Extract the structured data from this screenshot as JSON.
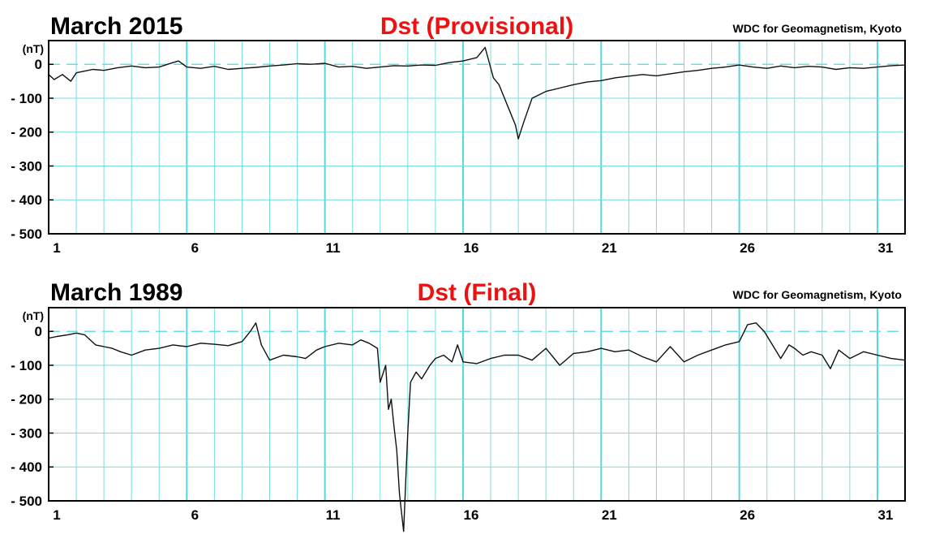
{
  "chart_data": [
    {
      "type": "line",
      "title": "March  2015",
      "subtitle": "Dst (Provisional)",
      "source": "WDC for Geomagnetism, Kyoto",
      "ylabel": "(nT)",
      "yticks": [
        0,
        -100,
        -200,
        -300,
        -400,
        -500
      ],
      "ytick_labels": [
        "0",
        "- 100",
        "- 200",
        "- 300",
        "- 400",
        "- 500"
      ],
      "ylim": [
        -500,
        70
      ],
      "xlim": [
        1,
        32
      ],
      "xticks": [
        1,
        6,
        11,
        16,
        21,
        26,
        31
      ],
      "xtick_labels": [
        "1",
        "6",
        "11",
        "16",
        "21",
        "26",
        "31"
      ],
      "grid": true,
      "series": [
        {
          "x": [
            1,
            1.2,
            1.5,
            1.8,
            2.0,
            2.3,
            2.6,
            3.0,
            3.5,
            4.0,
            4.5,
            5.0,
            5.5,
            5.7,
            6.0,
            6.5,
            7.0,
            7.5,
            8.0,
            8.5,
            9.0,
            9.5,
            10.0,
            10.5,
            11.0,
            11.5,
            12.0,
            12.5,
            13.0,
            13.5,
            14.0,
            14.5,
            15.0,
            15.5,
            16.0,
            16.5,
            16.8,
            17.0,
            17.1,
            17.3,
            17.5,
            17.7,
            17.9,
            18.0,
            18.2,
            18.5,
            19.0,
            19.5,
            20.0,
            20.5,
            21.0,
            21.5,
            22.0,
            22.5,
            23.0,
            23.5,
            24.0,
            24.5,
            25.0,
            25.5,
            26.0,
            26.5,
            27.0,
            27.5,
            28.0,
            28.5,
            29.0,
            29.5,
            30.0,
            30.5,
            31.0,
            31.5,
            32.0
          ],
          "values": [
            -30,
            -45,
            -30,
            -50,
            -25,
            -20,
            -15,
            -18,
            -10,
            -5,
            -10,
            -8,
            5,
            10,
            -8,
            -12,
            -6,
            -15,
            -12,
            -9,
            -5,
            -2,
            2,
            0,
            3,
            -8,
            -6,
            -12,
            -8,
            -4,
            -5,
            -2,
            -3,
            5,
            10,
            20,
            50,
            -10,
            -40,
            -60,
            -100,
            -140,
            -180,
            -220,
            -170,
            -100,
            -80,
            -70,
            -60,
            -52,
            -48,
            -40,
            -35,
            -30,
            -34,
            -28,
            -22,
            -18,
            -12,
            -8,
            -2,
            -8,
            -12,
            -5,
            -10,
            -6,
            -8,
            -15,
            -10,
            -12,
            -8,
            -4,
            -2
          ]
        }
      ]
    },
    {
      "type": "line",
      "title": "March  1989",
      "subtitle": "Dst (Final)",
      "source": "WDC for Geomagnetism, Kyoto",
      "ylabel": "(nT)",
      "yticks": [
        0,
        -100,
        -200,
        -300,
        -400,
        -500
      ],
      "ytick_labels": [
        "0",
        "- 100",
        "- 200",
        "- 300",
        "- 400",
        "- 500"
      ],
      "ylim": [
        -500,
        70
      ],
      "xlim": [
        1,
        32
      ],
      "xticks": [
        1,
        6,
        11,
        16,
        21,
        26,
        31
      ],
      "xtick_labels": [
        "1",
        "6",
        "11",
        "16",
        "21",
        "26",
        "31"
      ],
      "grid": true,
      "series": [
        {
          "x": [
            1,
            1.3,
            1.7,
            2.0,
            2.3,
            2.7,
            3.0,
            3.3,
            3.6,
            4.0,
            4.5,
            5.0,
            5.5,
            6.0,
            6.5,
            7.0,
            7.5,
            8.0,
            8.3,
            8.5,
            8.7,
            9.0,
            9.5,
            10.0,
            10.3,
            10.7,
            11.0,
            11.5,
            12.0,
            12.3,
            12.6,
            12.9,
            13.0,
            13.2,
            13.3,
            13.4,
            13.5,
            13.6,
            13.7,
            13.85,
            14.0,
            14.1,
            14.3,
            14.5,
            14.8,
            15.0,
            15.3,
            15.6,
            15.8,
            16.0,
            16.5,
            17.0,
            17.5,
            18.0,
            18.5,
            19.0,
            19.5,
            20.0,
            20.5,
            21.0,
            21.5,
            22.0,
            22.5,
            23.0,
            23.5,
            24.0,
            24.5,
            25.0,
            25.5,
            26.0,
            26.3,
            26.6,
            26.9,
            27.2,
            27.5,
            27.8,
            28.0,
            28.3,
            28.6,
            29.0,
            29.3,
            29.6,
            30.0,
            30.5,
            31.0,
            31.5,
            32.0
          ],
          "values": [
            -20,
            -15,
            -10,
            -5,
            -10,
            -40,
            -45,
            -50,
            -60,
            -70,
            -55,
            -50,
            -40,
            -45,
            -35,
            -38,
            -42,
            -30,
            0,
            25,
            -40,
            -85,
            -70,
            -75,
            -80,
            -55,
            -45,
            -35,
            -40,
            -25,
            -35,
            -50,
            -150,
            -100,
            -230,
            -200,
            -280,
            -350,
            -480,
            -590,
            -300,
            -150,
            -120,
            -140,
            -100,
            -80,
            -70,
            -90,
            -40,
            -90,
            -95,
            -80,
            -70,
            -70,
            -85,
            -50,
            -100,
            -65,
            -60,
            -50,
            -60,
            -55,
            -75,
            -90,
            -45,
            -90,
            -70,
            -55,
            -40,
            -30,
            20,
            25,
            0,
            -40,
            -80,
            -40,
            -50,
            -70,
            -60,
            -70,
            -110,
            -55,
            -80,
            -60,
            -70,
            -80,
            -85
          ]
        }
      ]
    }
  ]
}
